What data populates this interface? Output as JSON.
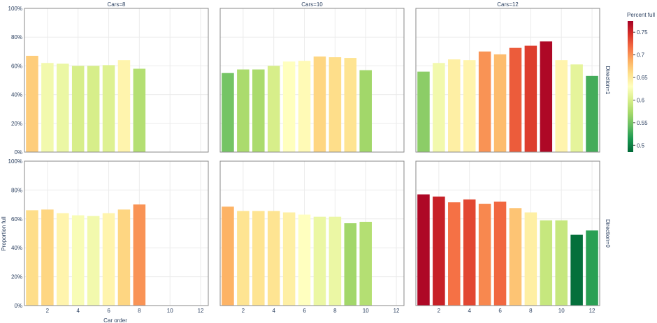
{
  "chart_data": {
    "type": "bar",
    "xlabel": "Car order",
    "ylabel": "Proportion full",
    "ylim": [
      0,
      1
    ],
    "xlim": [
      0.5,
      12.5
    ],
    "y_ticks": [
      "0%",
      "20%",
      "40%",
      "60%",
      "80%",
      "100%"
    ],
    "x_ticks": [
      2,
      4,
      6,
      8,
      10,
      12
    ],
    "column_titles": [
      "Cars=8",
      "Cars=10",
      "Cars=12"
    ],
    "row_titles": [
      "Direction=1",
      "Direction=0"
    ],
    "colorbar": {
      "title": "Percent full",
      "range": [
        0.485,
        0.775
      ],
      "ticks": [
        "0.5",
        "0.55",
        "0.6",
        "0.65",
        "0.7",
        "0.75"
      ],
      "tick_values": [
        0.5,
        0.55,
        0.6,
        0.65,
        0.7,
        0.75
      ],
      "colorscale": [
        "#006837",
        "#1a9850",
        "#66bd63",
        "#a6d96a",
        "#d9ef8b",
        "#ffffbf",
        "#fee08b",
        "#fdae61",
        "#f46d43",
        "#d73027",
        "#a50026"
      ]
    },
    "panels": [
      {
        "row": 0,
        "col": 0,
        "x": [
          1,
          2,
          3,
          4,
          5,
          6,
          7,
          8
        ],
        "values": [
          0.67,
          0.62,
          0.615,
          0.6,
          0.6,
          0.605,
          0.64,
          0.58
        ]
      },
      {
        "row": 0,
        "col": 1,
        "x": [
          1,
          2,
          3,
          4,
          5,
          6,
          7,
          8,
          9,
          10
        ],
        "values": [
          0.55,
          0.575,
          0.575,
          0.6,
          0.63,
          0.635,
          0.665,
          0.66,
          0.655,
          0.57
        ]
      },
      {
        "row": 0,
        "col": 2,
        "x": [
          1,
          2,
          3,
          4,
          5,
          6,
          7,
          8,
          9,
          10,
          11,
          12
        ],
        "values": [
          0.56,
          0.62,
          0.645,
          0.64,
          0.7,
          0.68,
          0.725,
          0.74,
          0.77,
          0.64,
          0.61,
          0.53
        ]
      },
      {
        "row": 1,
        "col": 0,
        "x": [
          1,
          2,
          3,
          4,
          5,
          6,
          7,
          8
        ],
        "values": [
          0.66,
          0.665,
          0.64,
          0.625,
          0.62,
          0.64,
          0.665,
          0.7
        ]
      },
      {
        "row": 1,
        "col": 1,
        "x": [
          1,
          2,
          3,
          4,
          5,
          6,
          7,
          8,
          9,
          10
        ],
        "values": [
          0.685,
          0.655,
          0.655,
          0.655,
          0.645,
          0.63,
          0.615,
          0.615,
          0.57,
          0.58
        ]
      },
      {
        "row": 1,
        "col": 2,
        "x": [
          1,
          2,
          3,
          4,
          5,
          6,
          7,
          8,
          9,
          10,
          11,
          12
        ],
        "values": [
          0.77,
          0.755,
          0.715,
          0.735,
          0.705,
          0.72,
          0.675,
          0.645,
          0.59,
          0.59,
          0.49,
          0.52
        ]
      }
    ]
  }
}
